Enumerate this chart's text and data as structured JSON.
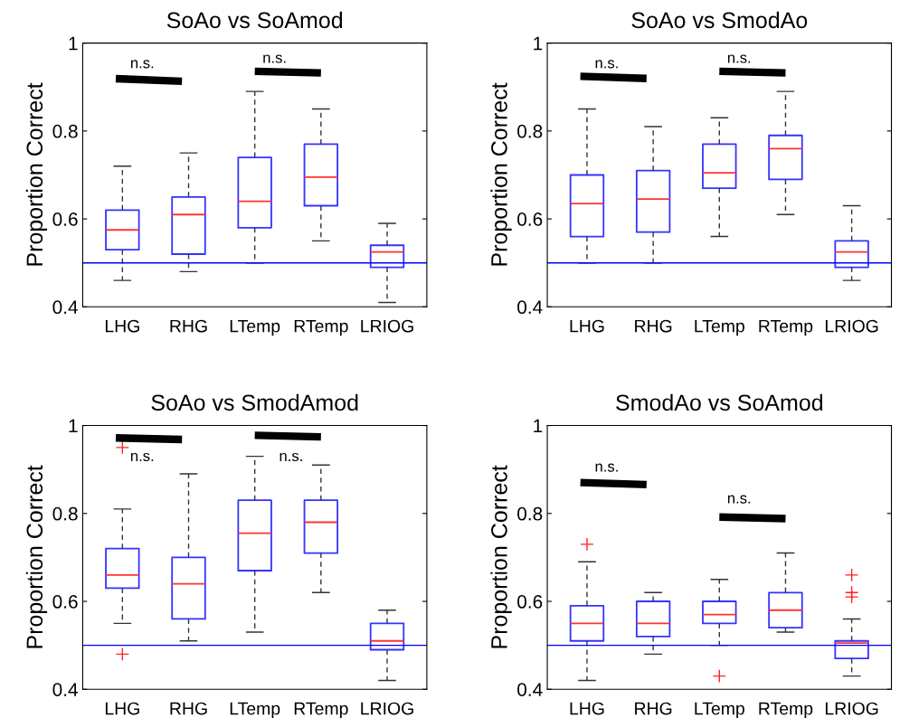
{
  "chart_data": [
    {
      "type": "box",
      "title": "SoAo vs SoAmod",
      "ylabel": "Proportion Correct",
      "categories": [
        "LHG",
        "RHG",
        "LTemp",
        "RTemp",
        "LRIOG"
      ],
      "ylim": [
        0.4,
        1
      ],
      "yticks": [
        0.4,
        0.6,
        0.8,
        1
      ],
      "grid": false,
      "ref_lines": [
        {
          "axis": "y",
          "value": 0.5,
          "color": "#0000ff"
        }
      ],
      "annotations": [
        "n.s.",
        "n.s."
      ],
      "boxes": [
        {
          "low": 0.46,
          "q1": 0.53,
          "median": 0.575,
          "q3": 0.62,
          "high": 0.72
        },
        {
          "low": 0.48,
          "q1": 0.52,
          "median": 0.61,
          "q3": 0.65,
          "high": 0.75
        },
        {
          "low": 0.5,
          "q1": 0.58,
          "median": 0.64,
          "q3": 0.74,
          "high": 0.89
        },
        {
          "low": 0.55,
          "q1": 0.63,
          "median": 0.695,
          "q3": 0.77,
          "high": 0.85
        },
        {
          "low": 0.41,
          "q1": 0.49,
          "median": 0.525,
          "q3": 0.54,
          "high": 0.59
        }
      ]
    },
    {
      "type": "box",
      "title": "SoAo vs SmodAo",
      "ylabel": "Proportion Correct",
      "categories": [
        "LHG",
        "RHG",
        "LTemp",
        "RTemp",
        "LRIOG"
      ],
      "ylim": [
        0.4,
        1
      ],
      "yticks": [
        0.4,
        0.6,
        0.8,
        1
      ],
      "grid": false,
      "ref_lines": [
        {
          "axis": "y",
          "value": 0.5,
          "color": "#0000ff"
        }
      ],
      "annotations": [
        "n.s.",
        "n.s."
      ],
      "boxes": [
        {
          "low": 0.5,
          "q1": 0.56,
          "median": 0.635,
          "q3": 0.7,
          "high": 0.85
        },
        {
          "low": 0.5,
          "q1": 0.57,
          "median": 0.645,
          "q3": 0.71,
          "high": 0.81
        },
        {
          "low": 0.56,
          "q1": 0.67,
          "median": 0.705,
          "q3": 0.77,
          "high": 0.83
        },
        {
          "low": 0.61,
          "q1": 0.69,
          "median": 0.76,
          "q3": 0.79,
          "high": 0.89
        },
        {
          "low": 0.46,
          "q1": 0.49,
          "median": 0.525,
          "q3": 0.55,
          "high": 0.63
        }
      ]
    },
    {
      "type": "box",
      "title": "SoAo vs SmodAmod",
      "ylabel": "Proportion Correct",
      "categories": [
        "LHG",
        "RHG",
        "LTemp",
        "RTemp",
        "LRIOG"
      ],
      "ylim": [
        0.4,
        1
      ],
      "yticks": [
        0.4,
        0.6,
        0.8,
        1
      ],
      "grid": false,
      "ref_lines": [
        {
          "axis": "y",
          "value": 0.5,
          "color": "#0000ff"
        }
      ],
      "annotations": [
        "n.s.",
        "n.s."
      ],
      "boxes": [
        {
          "low": 0.55,
          "q1": 0.63,
          "median": 0.66,
          "q3": 0.72,
          "high": 0.81,
          "outliers": [
            0.95,
            0.48
          ]
        },
        {
          "low": 0.51,
          "q1": 0.56,
          "median": 0.64,
          "q3": 0.7,
          "high": 0.89
        },
        {
          "low": 0.53,
          "q1": 0.67,
          "median": 0.755,
          "q3": 0.83,
          "high": 0.93
        },
        {
          "low": 0.62,
          "q1": 0.71,
          "median": 0.78,
          "q3": 0.83,
          "high": 0.91
        },
        {
          "low": 0.42,
          "q1": 0.49,
          "median": 0.51,
          "q3": 0.55,
          "high": 0.58
        }
      ]
    },
    {
      "type": "box",
      "title": "SmodAo vs SoAmod",
      "ylabel": "Proportion Correct",
      "categories": [
        "LHG",
        "RHG",
        "LTemp",
        "RTemp",
        "LRIOG"
      ],
      "ylim": [
        0.4,
        1
      ],
      "yticks": [
        0.4,
        0.6,
        0.8,
        1
      ],
      "grid": false,
      "ref_lines": [
        {
          "axis": "y",
          "value": 0.5,
          "color": "#0000ff"
        }
      ],
      "annotations": [
        "n.s.",
        "n.s."
      ],
      "boxes": [
        {
          "low": 0.42,
          "q1": 0.51,
          "median": 0.55,
          "q3": 0.59,
          "high": 0.69,
          "outliers": [
            0.73
          ]
        },
        {
          "low": 0.48,
          "q1": 0.52,
          "median": 0.55,
          "q3": 0.6,
          "high": 0.62
        },
        {
          "low": 0.5,
          "q1": 0.55,
          "median": 0.57,
          "q3": 0.6,
          "high": 0.65,
          "outliers": [
            0.43
          ]
        },
        {
          "low": 0.53,
          "q1": 0.54,
          "median": 0.58,
          "q3": 0.62,
          "high": 0.71
        },
        {
          "low": 0.43,
          "q1": 0.47,
          "median": 0.505,
          "q3": 0.51,
          "high": 0.56,
          "outliers": [
            0.61,
            0.62,
            0.66
          ]
        }
      ]
    }
  ]
}
